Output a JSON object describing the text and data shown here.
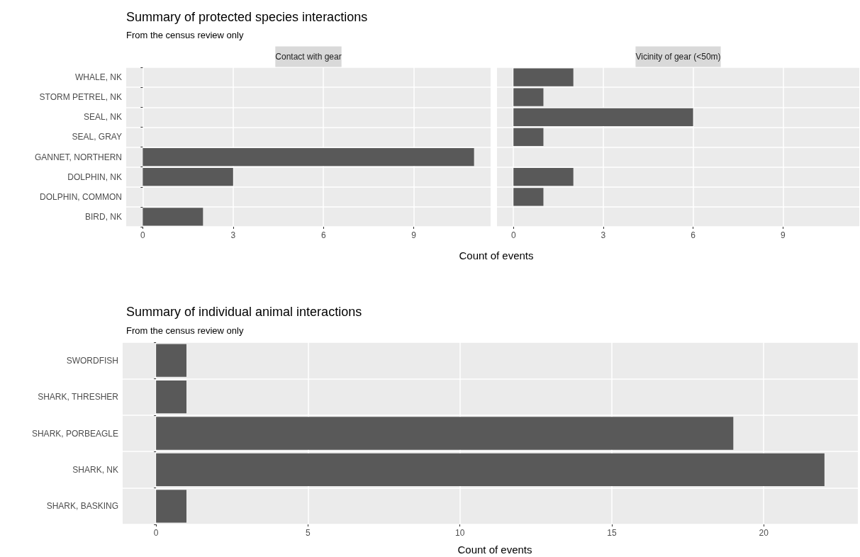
{
  "chart_data": [
    {
      "type": "bar",
      "orientation": "horizontal",
      "title": "Summary of protected species interactions",
      "subtitle": "From the census review only",
      "categories": [
        "WHALE, NK",
        "STORM PETREL, NK",
        "SEAL, NK",
        "SEAL, GRAY",
        "GANNET, NORTHERN",
        "DOLPHIN, NK",
        "DOLPHIN, COMMON",
        "BIRD, NK"
      ],
      "series": [
        {
          "name": "Contact with gear",
          "color": "#595959",
          "values": [
            null,
            null,
            null,
            null,
            11,
            3,
            null,
            2
          ]
        }
      ],
      "xlim": [
        -0.55,
        11.55
      ],
      "xticks": [
        0,
        3,
        6,
        9
      ],
      "grid": true
    },
    {
      "type": "bar",
      "orientation": "horizontal",
      "xlabel": "Count of events",
      "categories": [
        null,
        null,
        null,
        null,
        null,
        null,
        null,
        null
      ],
      "series": [
        {
          "name": "Vicinity of gear (<50m)",
          "color": "#595959",
          "values": [
            2,
            1,
            6,
            1,
            null,
            2,
            1,
            null
          ]
        }
      ],
      "xlim": [
        -0.55,
        11.55
      ],
      "xticks": [
        0,
        3,
        6,
        9
      ],
      "grid": true,
      "tick_labels": "x"
    },
    {
      "type": "bar",
      "orientation": "horizontal",
      "title": "Summary of individual animal interactions",
      "subtitle": "From the census review only",
      "xlabel": "Count of events",
      "categories": [
        "SWORDFISH",
        "SHARK, THRESHER",
        "SHARK, PORBEAGLE",
        "SHARK, NK",
        "SHARK, BASKING"
      ],
      "values": [
        1,
        1,
        19,
        22,
        1
      ],
      "color": "#595959",
      "xlim": [
        -1.1,
        23.1
      ],
      "xticks": [
        0,
        5,
        10,
        15,
        20
      ],
      "grid": true
    }
  ]
}
